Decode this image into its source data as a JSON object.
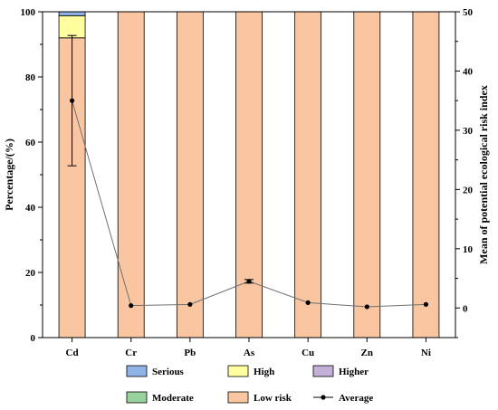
{
  "chart_data": {
    "type": "bar",
    "title": "",
    "categories": [
      "Cd",
      "Cr",
      "Pb",
      "As",
      "Cu",
      "Zn",
      "Ni"
    ],
    "ylabel": "Percentage/(%)",
    "ylim": [
      0,
      100
    ],
    "yticks": [
      0,
      20,
      40,
      60,
      80,
      100
    ],
    "y2label": "Mean of potential ecological risk index",
    "y2lim": [
      -5,
      50
    ],
    "y2ticks": [
      0,
      10,
      20,
      30,
      40,
      50
    ],
    "stacked": true,
    "series": [
      {
        "name": "Low risk",
        "color": "#f9c6a1",
        "values": [
          92,
          100,
          100,
          100,
          100,
          100,
          100
        ]
      },
      {
        "name": "Moderate",
        "color": "#98d19b",
        "values": [
          0,
          0,
          0,
          0,
          0,
          0,
          0
        ]
      },
      {
        "name": "Higher",
        "color": "#c2b0d9",
        "values": [
          0,
          0,
          0,
          0,
          0,
          0,
          0
        ]
      },
      {
        "name": "High",
        "color": "#ffffa0",
        "values": [
          6.8,
          0,
          0,
          0,
          0,
          0,
          0
        ]
      },
      {
        "name": "Serious",
        "color": "#8fb3e6",
        "values": [
          1.2,
          0,
          0,
          0,
          0,
          0,
          0
        ]
      }
    ],
    "line_series": {
      "name": "Average",
      "color": "#707070",
      "values": [
        35.0,
        0.4,
        0.6,
        4.5,
        0.9,
        0.2,
        0.6
      ],
      "error": [
        11.0,
        0,
        0,
        0.3,
        0,
        0,
        0
      ]
    },
    "legend": {
      "placement": "bottom",
      "order": [
        "Serious",
        "High",
        "Higher",
        "Moderate",
        "Low risk",
        "Average"
      ]
    }
  }
}
